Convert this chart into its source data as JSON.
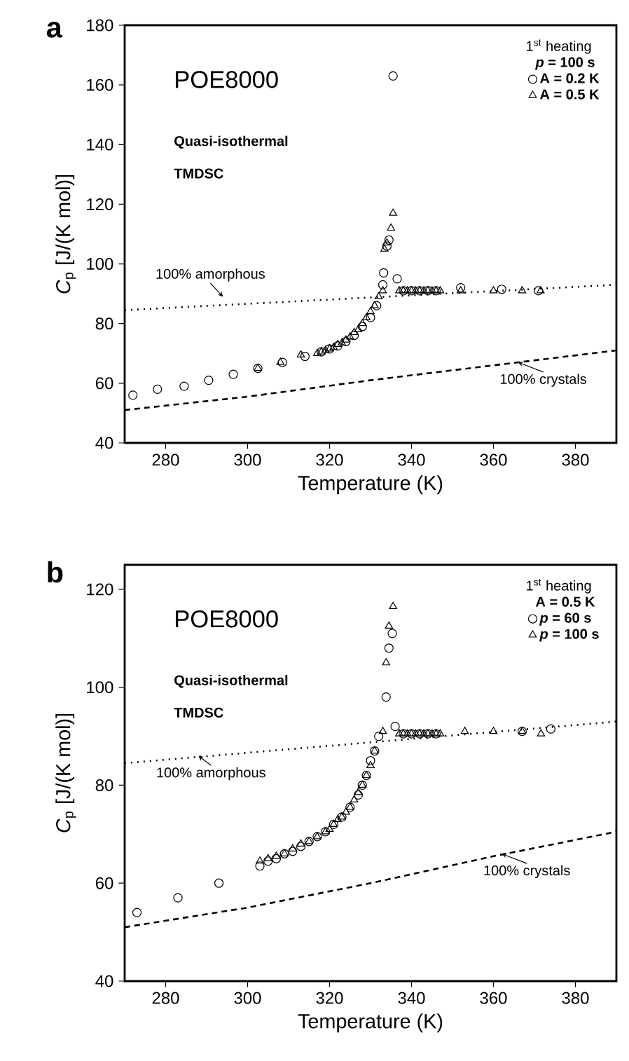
{
  "chart_data": [
    {
      "type": "scatter",
      "title": "a",
      "xlabel": "Temperature  (K)",
      "ylabel": "*C*$_{p}$ [J/(K mol)]",
      "legend_title": "1$^{st}$ heating",
      "legend": "top right",
      "xlim": [
        270,
        390
      ],
      "xticks": [
        280,
        300,
        320,
        340,
        360,
        380
      ],
      "ylim": [
        40,
        180
      ],
      "yticks": [
        40,
        60,
        80,
        100,
        120,
        140,
        160,
        180
      ],
      "annotations": [
        "POE8000",
        "Quasi-isothermal",
        "TMDSC",
        "*p* = 100 s",
        {
          "text": "100% amorphous",
          "x": 294,
          "y": 89
        },
        {
          "text": "100% crystals",
          "x": 366,
          "y": 67
        }
      ],
      "series": [
        {
          "name": "A = 0.2 K",
          "color": "#000000",
          "marker": "circle",
          "x": [
            272,
            278,
            284.5,
            290.5,
            296.5,
            302.5,
            308.5,
            314,
            318,
            320,
            322,
            324,
            326,
            328,
            330,
            331.5,
            333,
            333.2,
            334,
            334.5,
            335.5,
            336.5,
            338,
            340,
            342,
            344,
            346,
            352,
            362,
            371
          ],
          "values": [
            56,
            58,
            59,
            61,
            63,
            65,
            67,
            69,
            70.5,
            71.5,
            72.5,
            74,
            76,
            79,
            82,
            86,
            93,
            97,
            106,
            108,
            163,
            95,
            91,
            91,
            91,
            91,
            91,
            92,
            91.5,
            91
          ]
        },
        {
          "name": "A = 0.5 K",
          "color": "#000000",
          "marker": "triangle",
          "x": [
            302.5,
            308,
            313,
            317,
            318,
            319,
            320,
            321,
            322,
            323,
            324,
            325,
            326,
            327,
            328,
            329,
            330,
            331,
            332,
            333,
            333.4,
            334,
            335,
            335.5,
            337,
            338,
            339,
            340,
            341,
            342,
            343,
            344,
            345,
            346,
            347,
            352,
            360,
            367,
            371.5
          ],
          "values": [
            65,
            67,
            69.5,
            70,
            70.5,
            71,
            71.5,
            72,
            73,
            73.5,
            74.5,
            75.5,
            77,
            78,
            80,
            82,
            84,
            86,
            89,
            91,
            105,
            107,
            112,
            117,
            91,
            91,
            91,
            91,
            91,
            91,
            91,
            91,
            91,
            91,
            91,
            91,
            91,
            91,
            91
          ]
        },
        {
          "type": "line",
          "line_style": "dotted",
          "color": "#000000",
          "x": [
            270,
            390
          ],
          "values": [
            84.5,
            93
          ]
        },
        {
          "type": "line",
          "line_style": "dashed",
          "color": "#000000",
          "x": [
            270,
            300,
            330,
            360,
            390
          ],
          "values": [
            51,
            55.5,
            61,
            66,
            71
          ]
        }
      ]
    },
    {
      "type": "scatter",
      "title": "b",
      "xlabel": "Temperature  (K)",
      "ylabel": "*C*$_{p}$ [J/(K mol)]",
      "legend_title": "1$^{st}$ heating",
      "legend": "top right",
      "xlim": [
        270,
        390
      ],
      "xticks": [
        280,
        300,
        320,
        340,
        360,
        380
      ],
      "ylim": [
        40,
        125
      ],
      "yticks": [
        40,
        60,
        80,
        100,
        120
      ],
      "annotations": [
        "POE8000",
        "Quasi-isothermal",
        "TMDSC",
        "A = 0.5 K",
        {
          "text": "100% amorphous",
          "x": 288,
          "y": 86
        },
        {
          "text": "100% crystals",
          "x": 362,
          "y": 66
        }
      ],
      "series": [
        {
          "name": "*p* = 60 s",
          "color": "#000000",
          "marker": "circle",
          "x": [
            273,
            283,
            293,
            303,
            305,
            307,
            309,
            311,
            313,
            315,
            317,
            319,
            321,
            323,
            325,
            327,
            328,
            329,
            330,
            331,
            332,
            333.8,
            334.5,
            335.3,
            336,
            338,
            340,
            342,
            344,
            346,
            367,
            374
          ],
          "values": [
            54,
            57,
            60,
            63.5,
            64.5,
            65,
            66,
            66.5,
            67.5,
            68.5,
            69.5,
            70.5,
            72,
            73.5,
            75.5,
            78,
            80,
            82,
            85,
            87,
            90,
            98,
            108,
            111,
            92,
            90.5,
            90.5,
            90.5,
            90.5,
            90.5,
            91,
            91.5
          ]
        },
        {
          "name": "*p* = 100 s",
          "color": "#000000",
          "marker": "triangle",
          "x": [
            303,
            305,
            307,
            309,
            311,
            313,
            315,
            317,
            319,
            320,
            321,
            322,
            323,
            324,
            325,
            326,
            327,
            328,
            329,
            330,
            331,
            333,
            333.8,
            334.5,
            335.5,
            337,
            338,
            339,
            340,
            341,
            342,
            343,
            344,
            345,
            346,
            347,
            353,
            360,
            367,
            371.6
          ],
          "values": [
            64.5,
            65,
            65.5,
            66,
            67,
            68,
            68.5,
            69.5,
            70.5,
            71,
            72,
            73,
            73.5,
            74.5,
            75.5,
            77,
            78.5,
            80,
            82,
            84,
            87,
            91,
            105,
            112.5,
            116.5,
            90.5,
            90.5,
            90.5,
            90.5,
            90.5,
            90.5,
            90.5,
            90.5,
            90.5,
            90.5,
            90.5,
            91,
            91,
            91,
            90.5
          ]
        },
        {
          "type": "line",
          "line_style": "dotted",
          "color": "#000000",
          "x": [
            270,
            390
          ],
          "values": [
            84.5,
            93
          ]
        },
        {
          "type": "line",
          "line_style": "dashed",
          "color": "#000000",
          "x": [
            270,
            300,
            330,
            360,
            390
          ],
          "values": [
            51,
            55,
            60,
            65.5,
            70.5
          ]
        }
      ]
    }
  ]
}
